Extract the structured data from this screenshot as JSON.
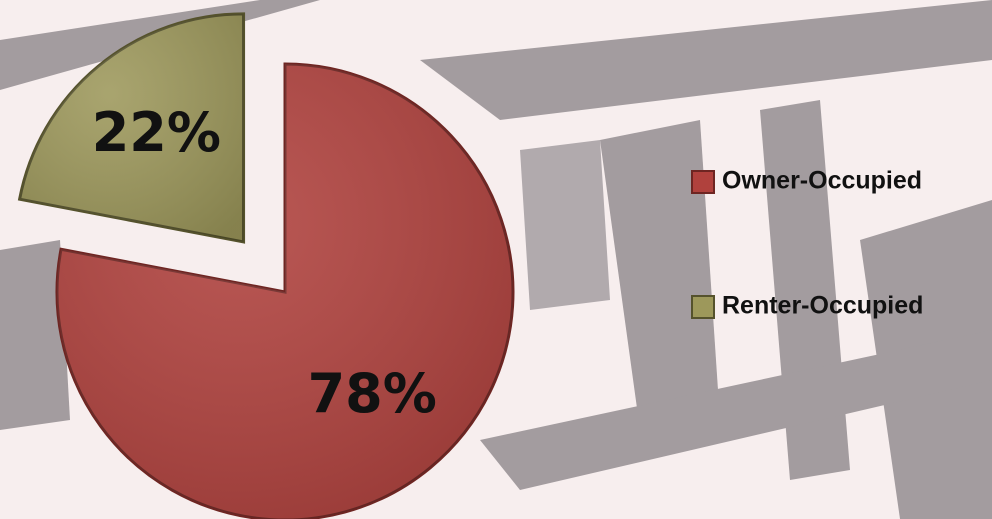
{
  "chart_data": {
    "type": "pie",
    "categories": [
      "Owner-Occupied",
      "Renter-Occupied"
    ],
    "values": [
      78,
      22
    ],
    "value_labels": [
      "78%",
      "22%"
    ],
    "colors": [
      "#b0413d",
      "#9d985b"
    ]
  }
}
